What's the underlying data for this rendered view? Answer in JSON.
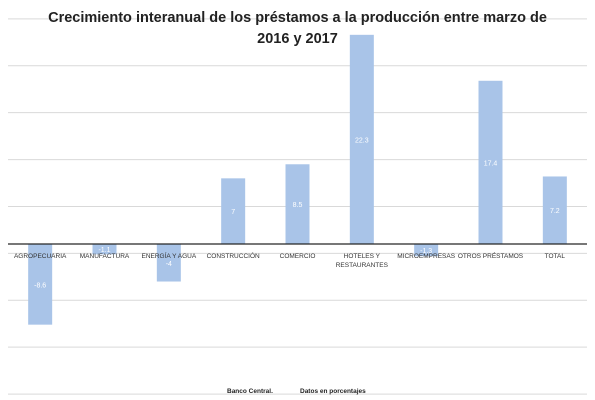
{
  "chart_data": {
    "type": "bar",
    "title": "Crecimiento interanual de los préstamos a la producción entre  marzo de 2016 y 2017",
    "categories": [
      "AGROPECUARIA",
      "MANUFACTURA",
      "ENERGÍA Y AGUA",
      "CONSTRUCCIÓN",
      "COMERCIO",
      "HOTELES Y RESTAURANTES",
      "MICROEMPRESAS",
      "OTROS PRÉSTAMOS",
      "TOTAL"
    ],
    "category_lines": [
      [
        "AGROPECUARIA"
      ],
      [
        "MANUFACTURA"
      ],
      [
        "ENERGÍA Y AGUA"
      ],
      [
        "CONSTRUCCIÓN"
      ],
      [
        "COMERCIO"
      ],
      [
        "HOTELES Y",
        "RESTAURANTES"
      ],
      [
        "MICROEMPRESAS"
      ],
      [
        "OTROS PRÉSTAMOS"
      ],
      [
        "TOTAL"
      ]
    ],
    "values": [
      -8.6,
      -1.1,
      -4,
      7,
      8.5,
      22.3,
      -1.3,
      17.4,
      7.2
    ],
    "value_labels": [
      "-8.6",
      "-1.1",
      "-4",
      "7",
      "8.5",
      "22.3",
      "-1.3",
      "17.4",
      "7.2"
    ],
    "ylim": [
      -16,
      24
    ],
    "grid": true,
    "bar_color": "#a9c4e8",
    "grid_color": "#d9d9d9",
    "xlabel": "",
    "ylabel": ""
  },
  "footer": {
    "source": "Banco Central.",
    "units": "Datos en porcentajes"
  }
}
